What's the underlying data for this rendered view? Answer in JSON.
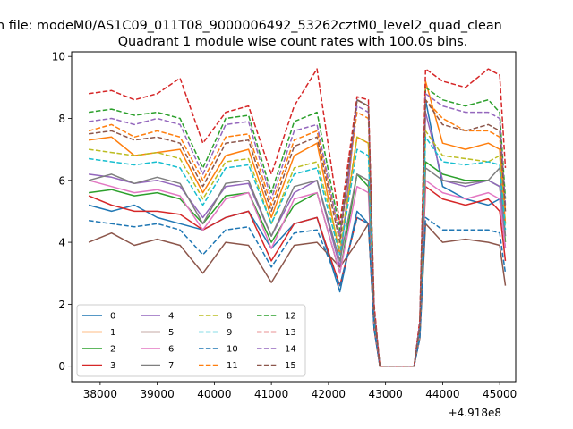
{
  "figure": {
    "suptitle": "n file: modeM0/AS1C09_011T08_9000006492_53262cztM0_level2_quad_clean"
  },
  "chart_data": {
    "type": "line",
    "title": "Quadrant 1 module wise count rates with 100.0s bins.",
    "xlabel": "",
    "ylabel": "",
    "x_offset_label": "+4.918e8",
    "x_offset": 491800000,
    "xlim": [
      37500,
      45280
    ],
    "ylim": [
      -0.5,
      10.15
    ],
    "xticks": [
      38000,
      39000,
      40000,
      41000,
      42000,
      43000,
      44000,
      45000
    ],
    "xtick_labels": [
      "38000",
      "39000",
      "40000",
      "41000",
      "42000",
      "43000",
      "44000",
      "45000"
    ],
    "yticks": [
      0,
      2,
      4,
      6,
      8,
      10
    ],
    "ytick_labels": [
      "0",
      "2",
      "4",
      "6",
      "8",
      "10"
    ],
    "grid": false,
    "legend": {
      "position": "lower-left",
      "columns": 4
    },
    "x": [
      37800,
      38200,
      38600,
      39000,
      39400,
      39800,
      40200,
      40600,
      41000,
      41400,
      41800,
      42200,
      42500,
      42700,
      42800,
      42900,
      43500,
      43600,
      43700,
      44000,
      44400,
      44800,
      45000,
      45100
    ],
    "series": [
      {
        "name": "0",
        "color": "#1f77b4",
        "dash": "solid",
        "values": [
          5.2,
          5.0,
          5.2,
          4.8,
          4.6,
          4.4,
          4.8,
          5.0,
          3.8,
          4.6,
          4.8,
          2.4,
          5.0,
          4.6,
          1.2,
          0,
          0,
          1.0,
          8.6,
          5.8,
          5.4,
          5.2,
          5.4,
          3.8
        ]
      },
      {
        "name": "1",
        "color": "#ff7f0e",
        "dash": "solid",
        "values": [
          7.3,
          7.4,
          6.8,
          6.9,
          7.0,
          5.6,
          6.8,
          7.0,
          4.8,
          6.8,
          7.2,
          3.6,
          7.4,
          7.2,
          1.6,
          0,
          0,
          1.2,
          9.2,
          7.2,
          7.0,
          7.2,
          7.0,
          4.6
        ]
      },
      {
        "name": "2",
        "color": "#2ca02c",
        "dash": "solid",
        "values": [
          5.6,
          5.7,
          5.5,
          5.6,
          5.4,
          4.6,
          5.5,
          5.6,
          4.0,
          5.2,
          5.6,
          3.0,
          6.2,
          5.8,
          1.4,
          0,
          0,
          1.0,
          6.6,
          6.2,
          6.0,
          6.0,
          5.8,
          4.0
        ]
      },
      {
        "name": "3",
        "color": "#d62728",
        "dash": "solid",
        "values": [
          5.5,
          5.2,
          5.0,
          5.0,
          4.9,
          4.4,
          4.8,
          5.0,
          3.4,
          4.6,
          4.8,
          2.6,
          4.8,
          4.6,
          1.2,
          0,
          0,
          1.0,
          5.8,
          5.4,
          5.2,
          5.4,
          5.0,
          3.4
        ]
      },
      {
        "name": "4",
        "color": "#9467bd",
        "dash": "solid",
        "values": [
          6.2,
          6.1,
          5.9,
          6.0,
          5.8,
          4.8,
          5.8,
          5.9,
          4.2,
          5.6,
          6.0,
          3.2,
          8.6,
          8.4,
          1.6,
          0,
          0,
          1.2,
          8.2,
          6.0,
          5.8,
          6.0,
          5.8,
          4.2
        ]
      },
      {
        "name": "5",
        "color": "#8c564b",
        "dash": "solid",
        "values": [
          4.0,
          4.3,
          3.9,
          4.1,
          3.9,
          3.0,
          4.0,
          3.9,
          2.7,
          3.9,
          4.0,
          3.2,
          4.0,
          4.6,
          1.4,
          0,
          0,
          0.9,
          4.6,
          4.0,
          4.1,
          4.0,
          3.9,
          2.6
        ]
      },
      {
        "name": "6",
        "color": "#e377c2",
        "dash": "solid",
        "values": [
          6.0,
          5.8,
          5.6,
          5.7,
          5.5,
          4.4,
          5.4,
          5.6,
          3.8,
          5.4,
          5.6,
          3.0,
          5.8,
          5.6,
          1.4,
          0,
          0,
          1.0,
          6.0,
          5.6,
          5.4,
          5.6,
          5.4,
          3.8
        ]
      },
      {
        "name": "7",
        "color": "#7f7f7f",
        "dash": "solid",
        "values": [
          6.0,
          6.2,
          5.9,
          6.1,
          5.9,
          4.6,
          5.9,
          6.0,
          4.2,
          5.8,
          6.0,
          3.4,
          6.2,
          6.0,
          1.5,
          0,
          0,
          1.1,
          6.4,
          6.0,
          5.9,
          6.0,
          6.4,
          4.2
        ]
      },
      {
        "name": "8",
        "color": "#bcbd22",
        "dash": "dashed",
        "values": [
          7.0,
          6.9,
          6.8,
          6.9,
          6.7,
          5.4,
          6.6,
          6.7,
          4.6,
          6.4,
          6.6,
          3.8,
          7.4,
          7.2,
          1.6,
          0,
          0,
          1.2,
          7.6,
          6.8,
          6.7,
          6.6,
          6.8,
          4.6
        ]
      },
      {
        "name": "9",
        "color": "#17becf",
        "dash": "dashed",
        "values": [
          6.7,
          6.6,
          6.5,
          6.6,
          6.4,
          5.2,
          6.4,
          6.5,
          4.6,
          6.2,
          6.4,
          3.6,
          7.0,
          6.8,
          1.6,
          0,
          0,
          1.2,
          7.4,
          6.6,
          6.5,
          6.6,
          6.5,
          4.4
        ]
      },
      {
        "name": "10",
        "color": "#1f77b4",
        "dash": "dashed",
        "values": [
          4.7,
          4.6,
          4.5,
          4.6,
          4.4,
          3.6,
          4.4,
          4.5,
          3.2,
          4.3,
          4.4,
          2.6,
          4.8,
          4.6,
          1.2,
          0,
          0,
          0.9,
          4.8,
          4.4,
          4.4,
          4.4,
          4.3,
          3.0
        ]
      },
      {
        "name": "11",
        "color": "#ff7f0e",
        "dash": "dashed",
        "values": [
          7.6,
          7.8,
          7.4,
          7.6,
          7.4,
          6.0,
          7.4,
          7.5,
          5.2,
          7.3,
          7.6,
          4.2,
          8.2,
          8.0,
          1.8,
          0,
          0,
          1.4,
          8.6,
          8.0,
          7.6,
          7.6,
          7.4,
          5.0
        ]
      },
      {
        "name": "12",
        "color": "#2ca02c",
        "dash": "dashed",
        "values": [
          8.2,
          8.3,
          8.1,
          8.2,
          8.0,
          6.4,
          8.0,
          8.1,
          5.6,
          7.9,
          8.2,
          4.4,
          8.6,
          8.4,
          1.9,
          0,
          0,
          1.4,
          9.0,
          8.6,
          8.4,
          8.6,
          8.2,
          5.4
        ]
      },
      {
        "name": "13",
        "color": "#d62728",
        "dash": "dashed",
        "values": [
          8.8,
          8.9,
          8.6,
          8.8,
          9.3,
          7.2,
          8.2,
          8.4,
          6.2,
          8.4,
          9.6,
          4.6,
          8.7,
          8.6,
          2.0,
          0,
          0,
          1.5,
          9.6,
          9.2,
          9.0,
          9.6,
          9.4,
          6.4
        ]
      },
      {
        "name": "14",
        "color": "#9467bd",
        "dash": "dashed",
        "values": [
          7.9,
          8.0,
          7.8,
          8.0,
          7.8,
          6.2,
          7.8,
          7.9,
          5.4,
          7.6,
          7.8,
          4.2,
          8.4,
          8.2,
          1.8,
          0,
          0,
          1.4,
          8.8,
          8.4,
          8.2,
          8.2,
          8.0,
          5.2
        ]
      },
      {
        "name": "15",
        "color": "#8c564b",
        "dash": "dashed",
        "values": [
          7.5,
          7.6,
          7.3,
          7.4,
          7.2,
          5.8,
          7.2,
          7.3,
          5.0,
          7.1,
          7.4,
          4.0,
          8.6,
          8.4,
          1.7,
          0,
          0,
          1.3,
          8.6,
          7.8,
          7.6,
          7.8,
          7.6,
          5.0
        ]
      }
    ]
  }
}
